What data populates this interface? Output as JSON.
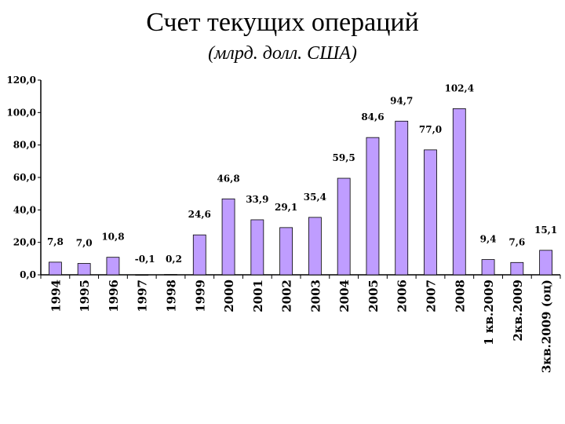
{
  "title": "Счет текущих операций",
  "subtitle": "(млрд. долл. США)",
  "chart_data": {
    "type": "bar",
    "title": "Счет текущих операций",
    "subtitle": "(млрд. долл. США)",
    "categories": [
      "1994",
      "1995",
      "1996",
      "1997",
      "1998",
      "1999",
      "2000",
      "2001",
      "2002",
      "2003",
      "2004",
      "2005",
      "2006",
      "2007",
      "2008",
      "1 кв.2009",
      "2кв.2009",
      "3кв.2009 (оц)"
    ],
    "values": [
      7.8,
      7.0,
      10.8,
      -0.1,
      0.2,
      24.6,
      46.8,
      33.9,
      29.1,
      35.4,
      59.5,
      84.6,
      94.7,
      77.0,
      102.4,
      9.4,
      7.6,
      15.1
    ],
    "data_labels": [
      "7,8",
      "7,0",
      "10,8",
      "-0,1",
      "0,2",
      "24,6",
      "46,8",
      "33,9",
      "29,1",
      "35,4",
      "59,5",
      "84,6",
      "94,7",
      "77,0",
      "102,4",
      "9,4",
      "7,6",
      "15,1"
    ],
    "y_ticks": [
      "0,0",
      "20,0",
      "40,0",
      "60,0",
      "80,0",
      "100,0",
      "120,0"
    ],
    "ylim": [
      0,
      120
    ],
    "bar_color": "#bf9dff",
    "grid": false
  }
}
